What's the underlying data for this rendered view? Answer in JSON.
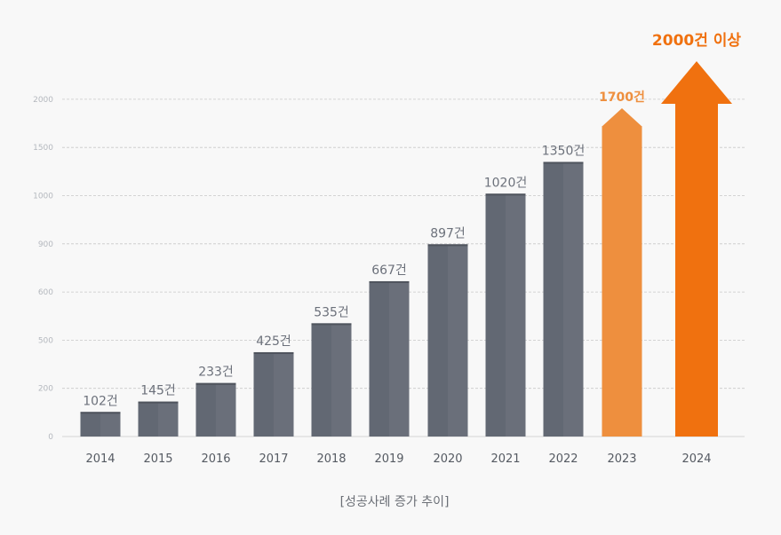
{
  "chart_data": {
    "type": "bar",
    "title": "",
    "caption": "[성공사례 증가 추이]",
    "categories": [
      "2014",
      "2015",
      "2016",
      "2017",
      "2018",
      "2019",
      "2020",
      "2021",
      "2022",
      "2023",
      "2024"
    ],
    "values": [
      102,
      145,
      233,
      425,
      535,
      667,
      897,
      1020,
      1350,
      1700,
      2000
    ],
    "value_labels": [
      "102건",
      "145건",
      "233건",
      "425건",
      "535건",
      "667건",
      "897건",
      "1020건",
      "1350건",
      "1700건",
      "2000건 이상"
    ],
    "y_ticks": [
      "0",
      "200",
      "500",
      "600",
      "900",
      "1000",
      "1500",
      "2000"
    ],
    "y_scale": "uneven tick spacing (equal visual gaps)",
    "grid": true,
    "colors": {
      "bar": "#626873",
      "bar_2023": "#ee8f3e",
      "bar_2024": "#f0710f",
      "grid": "#c8c8c8"
    },
    "highlight": {
      "2023": "arrow (orange)",
      "2024": "arrow (bright orange)"
    }
  }
}
